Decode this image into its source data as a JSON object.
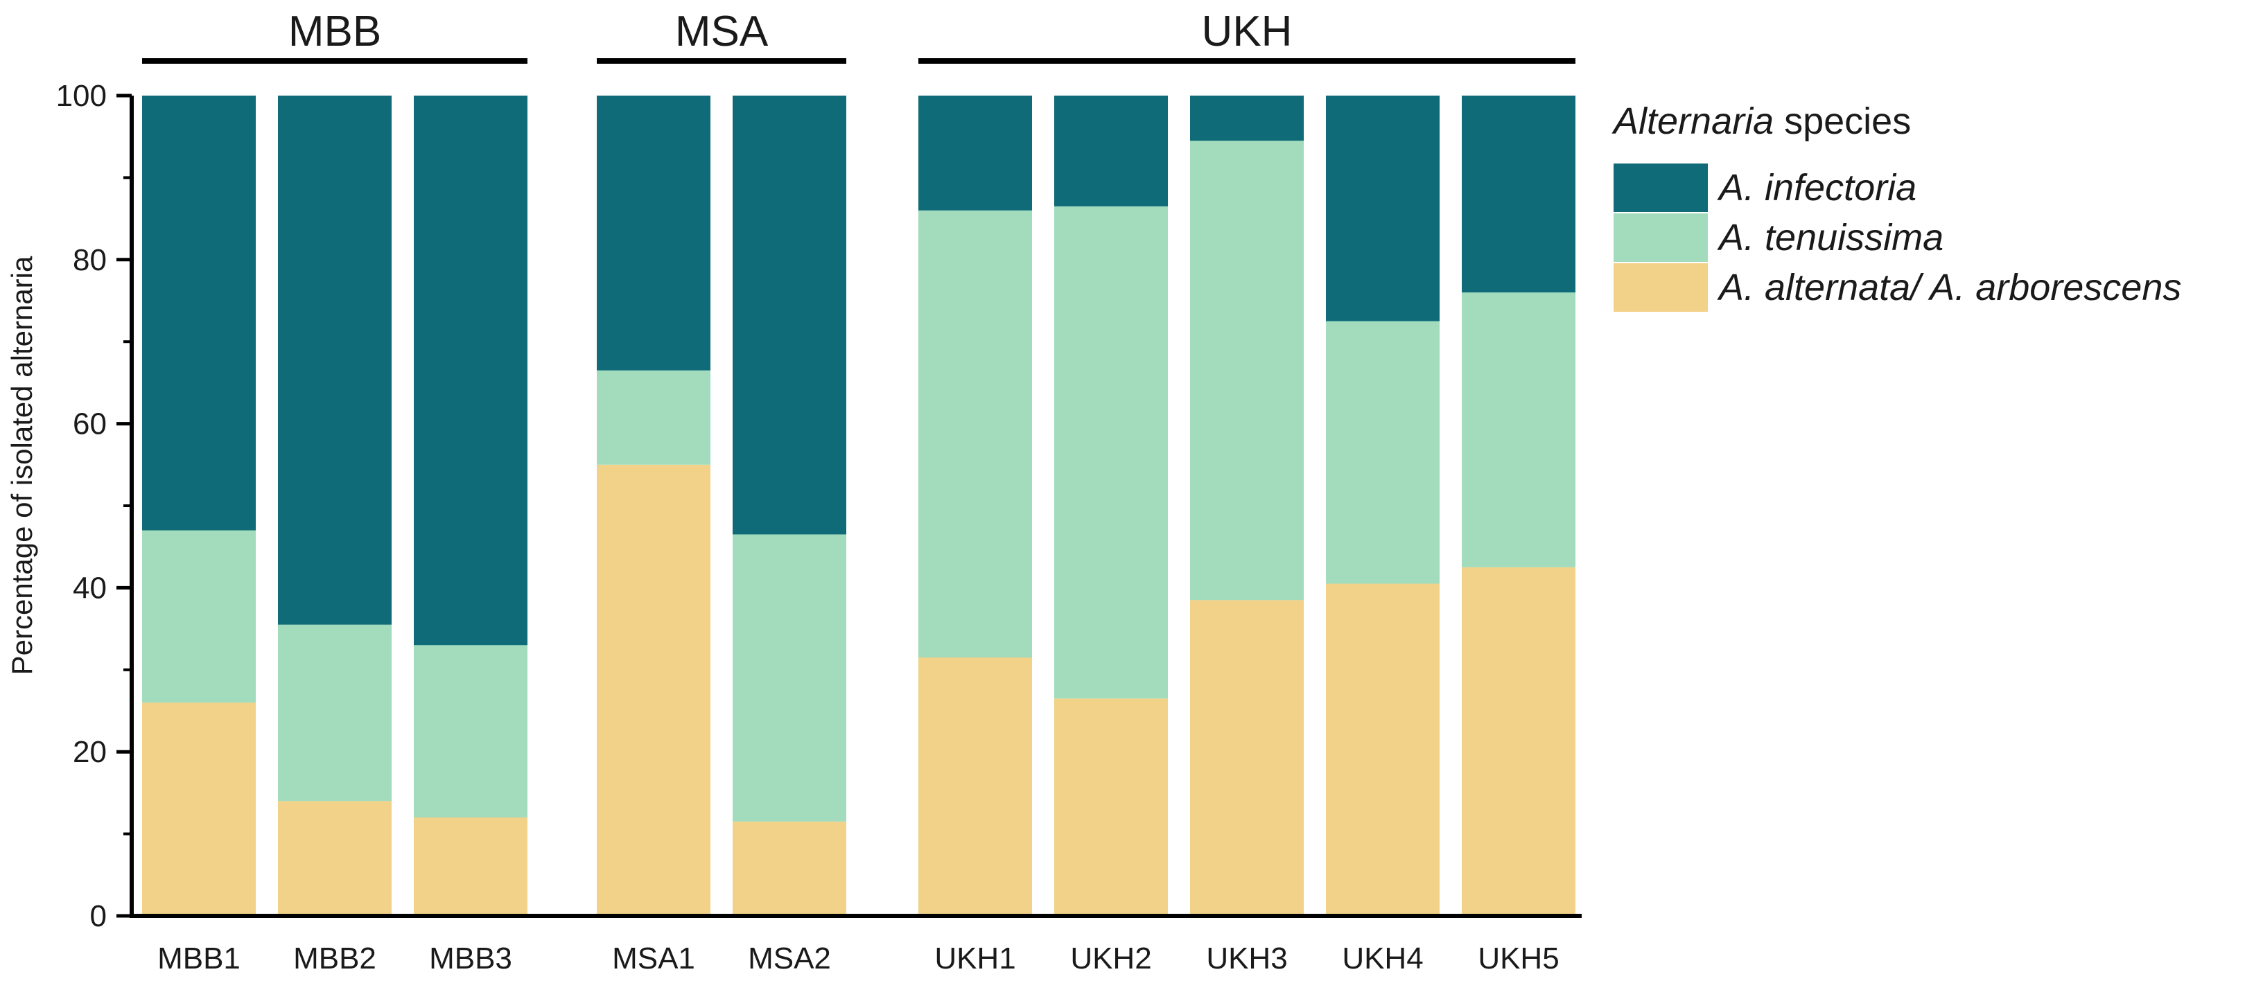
{
  "chart_data": {
    "type": "bar",
    "stacked": true,
    "title": "",
    "ylabel": "Percentage of isolated alternaria",
    "xlabel": "",
    "ylim": [
      0,
      100
    ],
    "yticks": [
      "0",
      "20",
      "40",
      "60",
      "80",
      "100"
    ],
    "categories": [
      "MBB1",
      "MBB2",
      "MBB3",
      "MSA1",
      "MSA2",
      "UKH1",
      "UKH2",
      "UKH3",
      "UKH4",
      "UKH5"
    ],
    "groups": [
      {
        "label": "MBB",
        "members": [
          "MBB1",
          "MBB2",
          "MBB3"
        ]
      },
      {
        "label": "MSA",
        "members": [
          "MSA1",
          "MSA2"
        ]
      },
      {
        "label": "UKH",
        "members": [
          "UKH1",
          "UKH2",
          "UKH3",
          "UKH4",
          "UKH5"
        ]
      }
    ],
    "legend": {
      "title_italic": "Alternaria",
      "title_rest": " species",
      "position": "right"
    },
    "series": [
      {
        "name": "A. alternata/ A. arborescens",
        "color": "#f2d188",
        "values": [
          26,
          14,
          12,
          55,
          11.5,
          31.5,
          26.5,
          38.5,
          40.5,
          42.5
        ]
      },
      {
        "name": "A. tenuissima",
        "color": "#a2dcbd",
        "values": [
          21,
          21.5,
          21,
          11.5,
          35,
          54.5,
          60,
          56,
          32,
          33.5
        ]
      },
      {
        "name": "A. infectoria",
        "color": "#0e6b77",
        "values": [
          53,
          64.5,
          67,
          33.5,
          53.5,
          14,
          13.5,
          5.5,
          27.5,
          24
        ]
      }
    ]
  }
}
